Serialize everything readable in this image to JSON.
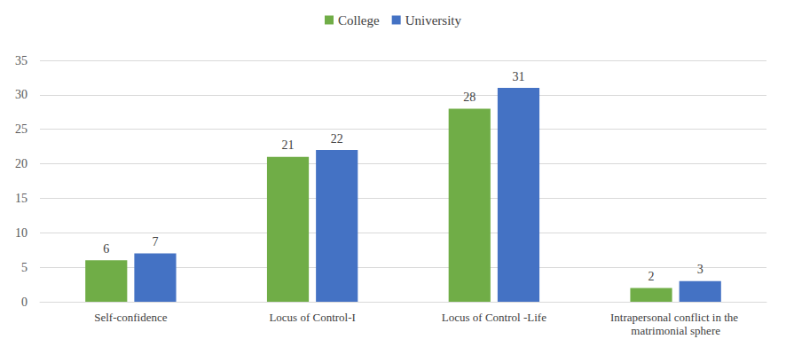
{
  "chart_data": {
    "type": "bar",
    "categories": [
      "Self-confidence",
      "Locus of Control-I",
      "Locus of Control -Life",
      "Intrapersonal conflict in the matrimonial sphere"
    ],
    "series": [
      {
        "name": "College",
        "color": "#70ad47",
        "values": [
          6,
          21,
          28,
          2
        ]
      },
      {
        "name": "University",
        "color": "#4472c4",
        "values": [
          7,
          22,
          31,
          3
        ]
      }
    ],
    "ylim": [
      0,
      35
    ],
    "yticks": [
      0,
      5,
      10,
      15,
      20,
      25,
      30,
      35
    ],
    "grid": true,
    "legend": "top",
    "data_labels": true
  }
}
